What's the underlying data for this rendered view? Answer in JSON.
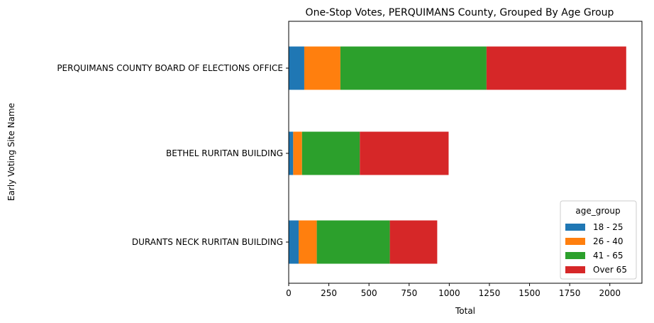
{
  "chart_data": {
    "type": "bar",
    "orientation": "horizontal",
    "stacked": true,
    "title": "One-Stop Votes, PERQUIMANS County, Grouped By Age Group",
    "xlabel": "Total",
    "ylabel": "Early Voting Site Name",
    "xlim": [
      0,
      2200
    ],
    "xticks": [
      "0",
      "250",
      "500",
      "750",
      "1000",
      "1250",
      "1500",
      "1750",
      "2000"
    ],
    "grid": false,
    "legend_title": "age_group",
    "legend_position": "bottom-right",
    "categories": [
      "PERQUIMANS COUNTY BOARD OF ELECTIONS OFFICE",
      "BETHEL RURITAN BUILDING",
      "DURANTS NECK RURITAN BUILDING"
    ],
    "series": [
      {
        "name": "18 - 25",
        "color": "#1f77b4",
        "values": [
          97,
          28,
          62
        ]
      },
      {
        "name": "26 - 40",
        "color": "#ff7f0e",
        "values": [
          225,
          55,
          113
        ]
      },
      {
        "name": "41 - 65",
        "color": "#2ca02c",
        "values": [
          910,
          360,
          455
        ]
      },
      {
        "name": "Over 65",
        "color": "#d62728",
        "values": [
          870,
          553,
          295
        ]
      }
    ]
  }
}
